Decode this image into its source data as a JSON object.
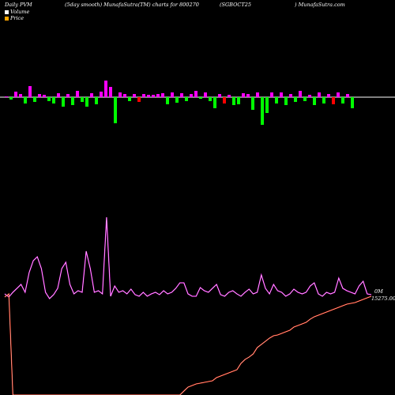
{
  "header": {
    "left": "Daily PVM",
    "smooth": "(5day smooth) MunafaSutra(TM) charts for 800270",
    "symbol": "(SGBOCT25",
    "site": ") MunafaSutra.com"
  },
  "legend": {
    "volume": "Volume",
    "price": "Price",
    "volume_color": "#ffffff",
    "price_color": "#ffa500"
  },
  "labels": {
    "volume_end": "0M",
    "price_end": "15275.00"
  },
  "colors": {
    "up": "#ff00ff",
    "down": "#00ff00",
    "red": "#ff0000",
    "volume_line": "#ff00ff",
    "price_line": "#ff2200"
  },
  "chart_data": {
    "type": "bar",
    "bars": [
      [
        1,
        "up"
      ],
      [
        3,
        "down"
      ],
      [
        7,
        "up"
      ],
      [
        4,
        "up"
      ],
      [
        8,
        "down"
      ],
      [
        14,
        "up"
      ],
      [
        6,
        "down"
      ],
      [
        4,
        "up"
      ],
      [
        3,
        "up"
      ],
      [
        5,
        "down"
      ],
      [
        8,
        "down"
      ],
      [
        5,
        "up"
      ],
      [
        12,
        "down"
      ],
      [
        4,
        "up"
      ],
      [
        10,
        "down"
      ],
      [
        8,
        "up"
      ],
      [
        6,
        "down"
      ],
      [
        12,
        "down"
      ],
      [
        5,
        "up"
      ],
      [
        9,
        "down"
      ],
      [
        7,
        "up"
      ],
      [
        21,
        "up"
      ],
      [
        13,
        "up"
      ],
      [
        33,
        "down"
      ],
      [
        6,
        "up"
      ],
      [
        4,
        "up"
      ],
      [
        5,
        "down"
      ],
      [
        4,
        "up"
      ],
      [
        6,
        "red"
      ],
      [
        4,
        "up"
      ],
      [
        3,
        "up"
      ],
      [
        3,
        "up"
      ],
      [
        4,
        "up"
      ],
      [
        5,
        "up"
      ],
      [
        9,
        "down"
      ],
      [
        6,
        "up"
      ],
      [
        7,
        "down"
      ],
      [
        5,
        "up"
      ],
      [
        5,
        "down"
      ],
      [
        4,
        "up"
      ],
      [
        8,
        "up"
      ],
      [
        2,
        "down"
      ],
      [
        6,
        "up"
      ],
      [
        5,
        "down"
      ],
      [
        14,
        "down"
      ],
      [
        4,
        "up"
      ],
      [
        8,
        "red"
      ],
      [
        3,
        "up"
      ],
      [
        10,
        "down"
      ],
      [
        9,
        "down"
      ],
      [
        5,
        "up"
      ],
      [
        4,
        "up"
      ],
      [
        16,
        "down"
      ],
      [
        6,
        "up"
      ],
      [
        35,
        "down"
      ],
      [
        20,
        "down"
      ],
      [
        6,
        "up"
      ],
      [
        8,
        "down"
      ],
      [
        6,
        "up"
      ],
      [
        10,
        "down"
      ],
      [
        4,
        "up"
      ],
      [
        6,
        "down"
      ],
      [
        8,
        "up"
      ],
      [
        5,
        "down"
      ],
      [
        3,
        "up"
      ],
      [
        10,
        "down"
      ],
      [
        6,
        "up"
      ],
      [
        8,
        "down"
      ],
      [
        4,
        "up"
      ],
      [
        9,
        "red"
      ],
      [
        6,
        "up"
      ],
      [
        8,
        "down"
      ],
      [
        4,
        "up"
      ],
      [
        14,
        "down"
      ]
    ],
    "volume_line": [
      372,
      376,
      370,
      365,
      360,
      370,
      345,
      330,
      325,
      340,
      370,
      378,
      373,
      365,
      340,
      332,
      360,
      372,
      368,
      370,
      318,
      340,
      370,
      368,
      372,
      275,
      375,
      362,
      370,
      368,
      372,
      366,
      373,
      375,
      370,
      375,
      372,
      370,
      373,
      368,
      372,
      370,
      365,
      358,
      358,
      372,
      375,
      375,
      364,
      368,
      370,
      365,
      360,
      373,
      375,
      370,
      368,
      372,
      375,
      370,
      366,
      372,
      370,
      348,
      365,
      372,
      360,
      368,
      370,
      375,
      372,
      366,
      370,
      372,
      370,
      362,
      358,
      372,
      375,
      370,
      372,
      370,
      352,
      365,
      368,
      370,
      372,
      362,
      356,
      372,
      373
    ],
    "price_line": [
      376,
      372,
      500,
      500,
      500,
      500,
      500,
      500,
      500,
      500,
      500,
      500,
      500,
      500,
      500,
      500,
      500,
      500,
      500,
      500,
      500,
      500,
      500,
      500,
      500,
      500,
      500,
      500,
      500,
      500,
      500,
      500,
      500,
      500,
      500,
      500,
      500,
      500,
      500,
      500,
      500,
      500,
      500,
      500,
      495,
      490,
      488,
      486,
      485,
      484,
      483,
      482,
      478,
      476,
      474,
      472,
      470,
      468,
      460,
      455,
      452,
      448,
      440,
      436,
      432,
      428,
      425,
      424,
      422,
      420,
      418,
      414,
      412,
      410,
      408,
      404,
      401,
      399,
      397,
      395,
      393,
      391,
      389,
      387,
      385,
      384,
      383,
      381,
      379,
      377,
      375
    ]
  }
}
